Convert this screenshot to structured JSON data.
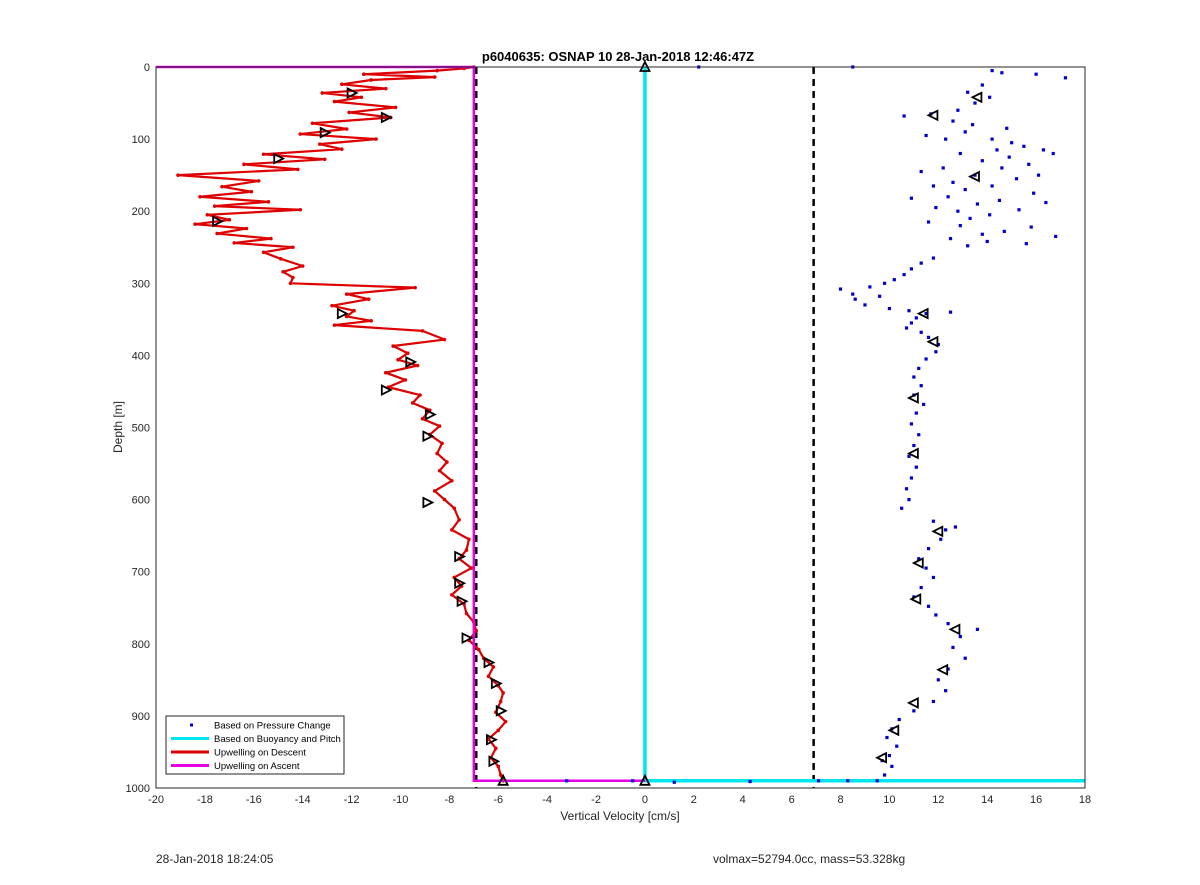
{
  "chart_data": {
    "type": "scatter",
    "title": "p6040635: OSNAP 10 28-Jan-2018 12:46:47Z",
    "xlabel": "Vertical Velocity [cm/s]",
    "ylabel": "Depth [m]",
    "xlim": [
      -20,
      18
    ],
    "ylim": [
      0,
      1000
    ],
    "y_reversed": true,
    "grid": true,
    "legend_position": "bottom-left",
    "x_ticks": [
      "-20",
      "-18",
      "-16",
      "-14",
      "-12",
      "-10",
      "-8",
      "-6",
      "-4",
      "-2",
      "0",
      "2",
      "4",
      "6",
      "8",
      "10",
      "12",
      "14",
      "16",
      "18"
    ],
    "y_ticks": [
      "0",
      "100",
      "200",
      "300",
      "400",
      "500",
      "600",
      "700",
      "800",
      "900",
      "1000"
    ],
    "threshold_lines": [
      -6.9,
      6.9
    ],
    "series": [
      {
        "name": "Based on Pressure Change",
        "color": "#0000cc",
        "style": "points",
        "values": [
          [
            8.5,
            0
          ],
          [
            2.2,
            0
          ],
          [
            14.2,
            5
          ],
          [
            14.6,
            8
          ],
          [
            16.0,
            10
          ],
          [
            17.2,
            15
          ],
          [
            13.8,
            25
          ],
          [
            13.2,
            35
          ],
          [
            14.1,
            42
          ],
          [
            13.5,
            50
          ],
          [
            12.8,
            60
          ],
          [
            11.7,
            65
          ],
          [
            10.6,
            68
          ],
          [
            12.6,
            75
          ],
          [
            13.4,
            80
          ],
          [
            14.8,
            85
          ],
          [
            13.1,
            90
          ],
          [
            11.5,
            95
          ],
          [
            14.2,
            100
          ],
          [
            15.0,
            105
          ],
          [
            12.3,
            100
          ],
          [
            15.5,
            110
          ],
          [
            16.3,
            115
          ],
          [
            14.4,
            115
          ],
          [
            12.9,
            120
          ],
          [
            16.7,
            120
          ],
          [
            14.9,
            125
          ],
          [
            13.8,
            130
          ],
          [
            15.7,
            135
          ],
          [
            12.2,
            140
          ],
          [
            14.6,
            140
          ],
          [
            11.3,
            145
          ],
          [
            13.5,
            150
          ],
          [
            16.1,
            150
          ],
          [
            15.2,
            155
          ],
          [
            12.6,
            160
          ],
          [
            11.8,
            165
          ],
          [
            14.2,
            165
          ],
          [
            13.1,
            170
          ],
          [
            15.9,
            175
          ],
          [
            12.4,
            180
          ],
          [
            10.9,
            182
          ],
          [
            14.5,
            185
          ],
          [
            13.6,
            190
          ],
          [
            16.4,
            188
          ],
          [
            11.9,
            195
          ],
          [
            15.3,
            198
          ],
          [
            12.8,
            200
          ],
          [
            14.1,
            205
          ],
          [
            13.3,
            210
          ],
          [
            11.6,
            215
          ],
          [
            12.9,
            220
          ],
          [
            15.8,
            222
          ],
          [
            14.7,
            228
          ],
          [
            13.8,
            232
          ],
          [
            16.8,
            235
          ],
          [
            12.5,
            238
          ],
          [
            14.0,
            242
          ],
          [
            15.6,
            245
          ],
          [
            13.2,
            248
          ],
          [
            11.8,
            265
          ],
          [
            11.3,
            272
          ],
          [
            10.9,
            280
          ],
          [
            10.6,
            288
          ],
          [
            10.2,
            295
          ],
          [
            9.8,
            300
          ],
          [
            9.2,
            305
          ],
          [
            8.0,
            308
          ],
          [
            8.5,
            315
          ],
          [
            9.6,
            318
          ],
          [
            8.6,
            322
          ],
          [
            9.0,
            330
          ],
          [
            10.0,
            335
          ],
          [
            10.8,
            338
          ],
          [
            11.5,
            342
          ],
          [
            12.5,
            340
          ],
          [
            11.1,
            348
          ],
          [
            10.9,
            355
          ],
          [
            10.7,
            362
          ],
          [
            11.3,
            368
          ],
          [
            11.6,
            375
          ],
          [
            12.0,
            385
          ],
          [
            11.9,
            395
          ],
          [
            11.5,
            405
          ],
          [
            11.2,
            418
          ],
          [
            11.0,
            430
          ],
          [
            11.3,
            442
          ],
          [
            11.0,
            455
          ],
          [
            11.4,
            468
          ],
          [
            11.1,
            480
          ],
          [
            10.9,
            495
          ],
          [
            11.2,
            510
          ],
          [
            11.0,
            525
          ],
          [
            10.8,
            540
          ],
          [
            11.1,
            555
          ],
          [
            10.9,
            570
          ],
          [
            10.7,
            585
          ],
          [
            10.8,
            600
          ],
          [
            10.5,
            612
          ],
          [
            11.8,
            630
          ],
          [
            12.3,
            642
          ],
          [
            12.7,
            638
          ],
          [
            12.1,
            655
          ],
          [
            11.6,
            668
          ],
          [
            11.2,
            682
          ],
          [
            11.5,
            695
          ],
          [
            11.8,
            708
          ],
          [
            11.3,
            722
          ],
          [
            11.0,
            735
          ],
          [
            11.6,
            748
          ],
          [
            11.9,
            760
          ],
          [
            12.4,
            772
          ],
          [
            13.6,
            780
          ],
          [
            12.9,
            790
          ],
          [
            12.6,
            805
          ],
          [
            13.1,
            820
          ],
          [
            12.4,
            835
          ],
          [
            12.0,
            850
          ],
          [
            12.3,
            865
          ],
          [
            11.8,
            880
          ],
          [
            11.0,
            893
          ],
          [
            10.4,
            905
          ],
          [
            10.1,
            918
          ],
          [
            9.9,
            930
          ],
          [
            10.3,
            942
          ],
          [
            10.0,
            955
          ],
          [
            9.7,
            962
          ],
          [
            10.1,
            970
          ],
          [
            9.8,
            982
          ],
          [
            9.5,
            990
          ],
          [
            8.3,
            990
          ],
          [
            7.1,
            990
          ],
          [
            4.3,
            991
          ],
          [
            1.2,
            992
          ],
          [
            -3.2,
            990
          ],
          [
            -0.5,
            990
          ]
        ]
      },
      {
        "name": "Based on Buoyancy and Pitch",
        "color": "#00e5ee",
        "style": "line",
        "values": [
          [
            0,
            0
          ],
          [
            0,
            990
          ],
          [
            18,
            990
          ]
        ]
      },
      {
        "name": "Upwelling on Descent",
        "color": "#dd0000",
        "style": "line-markers",
        "values": [
          [
            -7,
            0
          ],
          [
            -7.4,
            2
          ],
          [
            -8.5,
            5
          ],
          [
            -11.5,
            10
          ],
          [
            -8.6,
            14
          ],
          [
            -11.2,
            18
          ],
          [
            -12.4,
            24
          ],
          [
            -10.6,
            30
          ],
          [
            -13.2,
            36
          ],
          [
            -11.6,
            42
          ],
          [
            -12.7,
            48
          ],
          [
            -10.2,
            56
          ],
          [
            -12.1,
            63
          ],
          [
            -10.4,
            70
          ],
          [
            -13.6,
            78
          ],
          [
            -12.2,
            86
          ],
          [
            -14.1,
            93
          ],
          [
            -11.0,
            100
          ],
          [
            -13.3,
            107
          ],
          [
            -12.4,
            114
          ],
          [
            -15.6,
            121
          ],
          [
            -13.1,
            128
          ],
          [
            -16.4,
            135
          ],
          [
            -14.2,
            142
          ],
          [
            -19.1,
            150
          ],
          [
            -15.8,
            158
          ],
          [
            -17.3,
            166
          ],
          [
            -16.1,
            173
          ],
          [
            -18.2,
            180
          ],
          [
            -15.4,
            187
          ],
          [
            -17.6,
            193
          ],
          [
            -14.1,
            198
          ],
          [
            -17.9,
            205
          ],
          [
            -17.0,
            212
          ],
          [
            -18.4,
            218
          ],
          [
            -16.3,
            224
          ],
          [
            -17.5,
            231
          ],
          [
            -15.3,
            238
          ],
          [
            -16.8,
            244
          ],
          [
            -14.4,
            250
          ],
          [
            -15.6,
            257
          ],
          [
            -14.9,
            266
          ],
          [
            -14.0,
            276
          ],
          [
            -14.8,
            284
          ],
          [
            -14.4,
            292
          ],
          [
            -14.5,
            300
          ],
          [
            -9.4,
            306
          ],
          [
            -12.2,
            315
          ],
          [
            -11.3,
            322
          ],
          [
            -12.8,
            331
          ],
          [
            -11.9,
            338
          ],
          [
            -12.2,
            346
          ],
          [
            -11.2,
            352
          ],
          [
            -12.7,
            358
          ],
          [
            -9.1,
            366
          ],
          [
            -8.2,
            378
          ],
          [
            -10.3,
            387
          ],
          [
            -9.7,
            397
          ],
          [
            -10.1,
            406
          ],
          [
            -9.3,
            414
          ],
          [
            -10.6,
            424
          ],
          [
            -9.8,
            434
          ],
          [
            -10.5,
            444
          ],
          [
            -9.2,
            455
          ],
          [
            -9.5,
            466
          ],
          [
            -8.8,
            476
          ],
          [
            -9.1,
            488
          ],
          [
            -8.4,
            498
          ],
          [
            -8.8,
            510
          ],
          [
            -8.3,
            522
          ],
          [
            -8.5,
            536
          ],
          [
            -8.1,
            548
          ],
          [
            -8.4,
            560
          ],
          [
            -7.9,
            574
          ],
          [
            -8.6,
            588
          ],
          [
            -8.2,
            600
          ],
          [
            -7.8,
            612
          ],
          [
            -7.6,
            628
          ],
          [
            -7.9,
            642
          ],
          [
            -7.2,
            655
          ],
          [
            -7.3,
            670
          ],
          [
            -7.6,
            682
          ],
          [
            -7.1,
            695
          ],
          [
            -7.8,
            708
          ],
          [
            -7.5,
            720
          ],
          [
            -7.9,
            732
          ],
          [
            -7.4,
            745
          ],
          [
            -7.3,
            758
          ],
          [
            -7.0,
            770
          ],
          [
            -6.9,
            782
          ],
          [
            -7.2,
            795
          ],
          [
            -6.8,
            808
          ],
          [
            -6.6,
            820
          ],
          [
            -6.2,
            832
          ],
          [
            -6.4,
            845
          ],
          [
            -6.0,
            858
          ],
          [
            -5.8,
            868
          ],
          [
            -5.9,
            880
          ],
          [
            -6.1,
            895
          ],
          [
            -5.7,
            908
          ],
          [
            -6.0,
            920
          ],
          [
            -6.4,
            932
          ],
          [
            -6.1,
            945
          ],
          [
            -6.3,
            958
          ],
          [
            -6.0,
            970
          ],
          [
            -5.9,
            982
          ],
          [
            -5.8,
            990
          ]
        ]
      },
      {
        "name": "Upwelling on Ascent",
        "color": "#e600e6",
        "style": "line",
        "values": [
          [
            -20,
            0
          ],
          [
            -7,
            0
          ],
          [
            -7,
            990
          ],
          [
            -5.8,
            990
          ],
          [
            0,
            990
          ]
        ]
      }
    ],
    "markers": [
      {
        "shape": "right-triangle",
        "points": [
          [
            -12,
            36
          ],
          [
            -10.6,
            70
          ],
          [
            -13.1,
            91
          ],
          [
            -15,
            127
          ],
          [
            -17.5,
            214
          ],
          [
            -12.4,
            342
          ],
          [
            -9.6,
            409
          ],
          [
            -10.6,
            448
          ],
          [
            -8.8,
            482
          ],
          [
            -8.9,
            512
          ],
          [
            -8.9,
            604
          ],
          [
            -7.6,
            679
          ],
          [
            -7.6,
            716
          ],
          [
            -7.5,
            741
          ],
          [
            -7.3,
            792
          ],
          [
            -6.4,
            826
          ],
          [
            -6.1,
            855
          ],
          [
            -5.9,
            893
          ],
          [
            -6.3,
            933
          ],
          [
            -6.2,
            963
          ]
        ]
      },
      {
        "shape": "left-triangle",
        "points": [
          [
            13.6,
            42
          ],
          [
            11.8,
            67
          ],
          [
            13.5,
            152
          ],
          [
            11.4,
            342
          ],
          [
            11.8,
            381
          ],
          [
            11.0,
            459
          ],
          [
            11.0,
            536
          ],
          [
            12.0,
            644
          ],
          [
            11.2,
            688
          ],
          [
            11.1,
            738
          ],
          [
            12.7,
            780
          ],
          [
            12.2,
            836
          ],
          [
            11.0,
            882
          ],
          [
            10.2,
            920
          ],
          [
            9.7,
            958
          ]
        ]
      },
      {
        "shape": "up-triangle",
        "points": [
          [
            -5.8,
            990
          ],
          [
            0,
            990
          ],
          [
            0,
            0
          ]
        ]
      }
    ]
  },
  "footer": {
    "timestamp": "28-Jan-2018 18:24:05",
    "info": "volmax=52794.0cc, mass=53.328kg"
  }
}
